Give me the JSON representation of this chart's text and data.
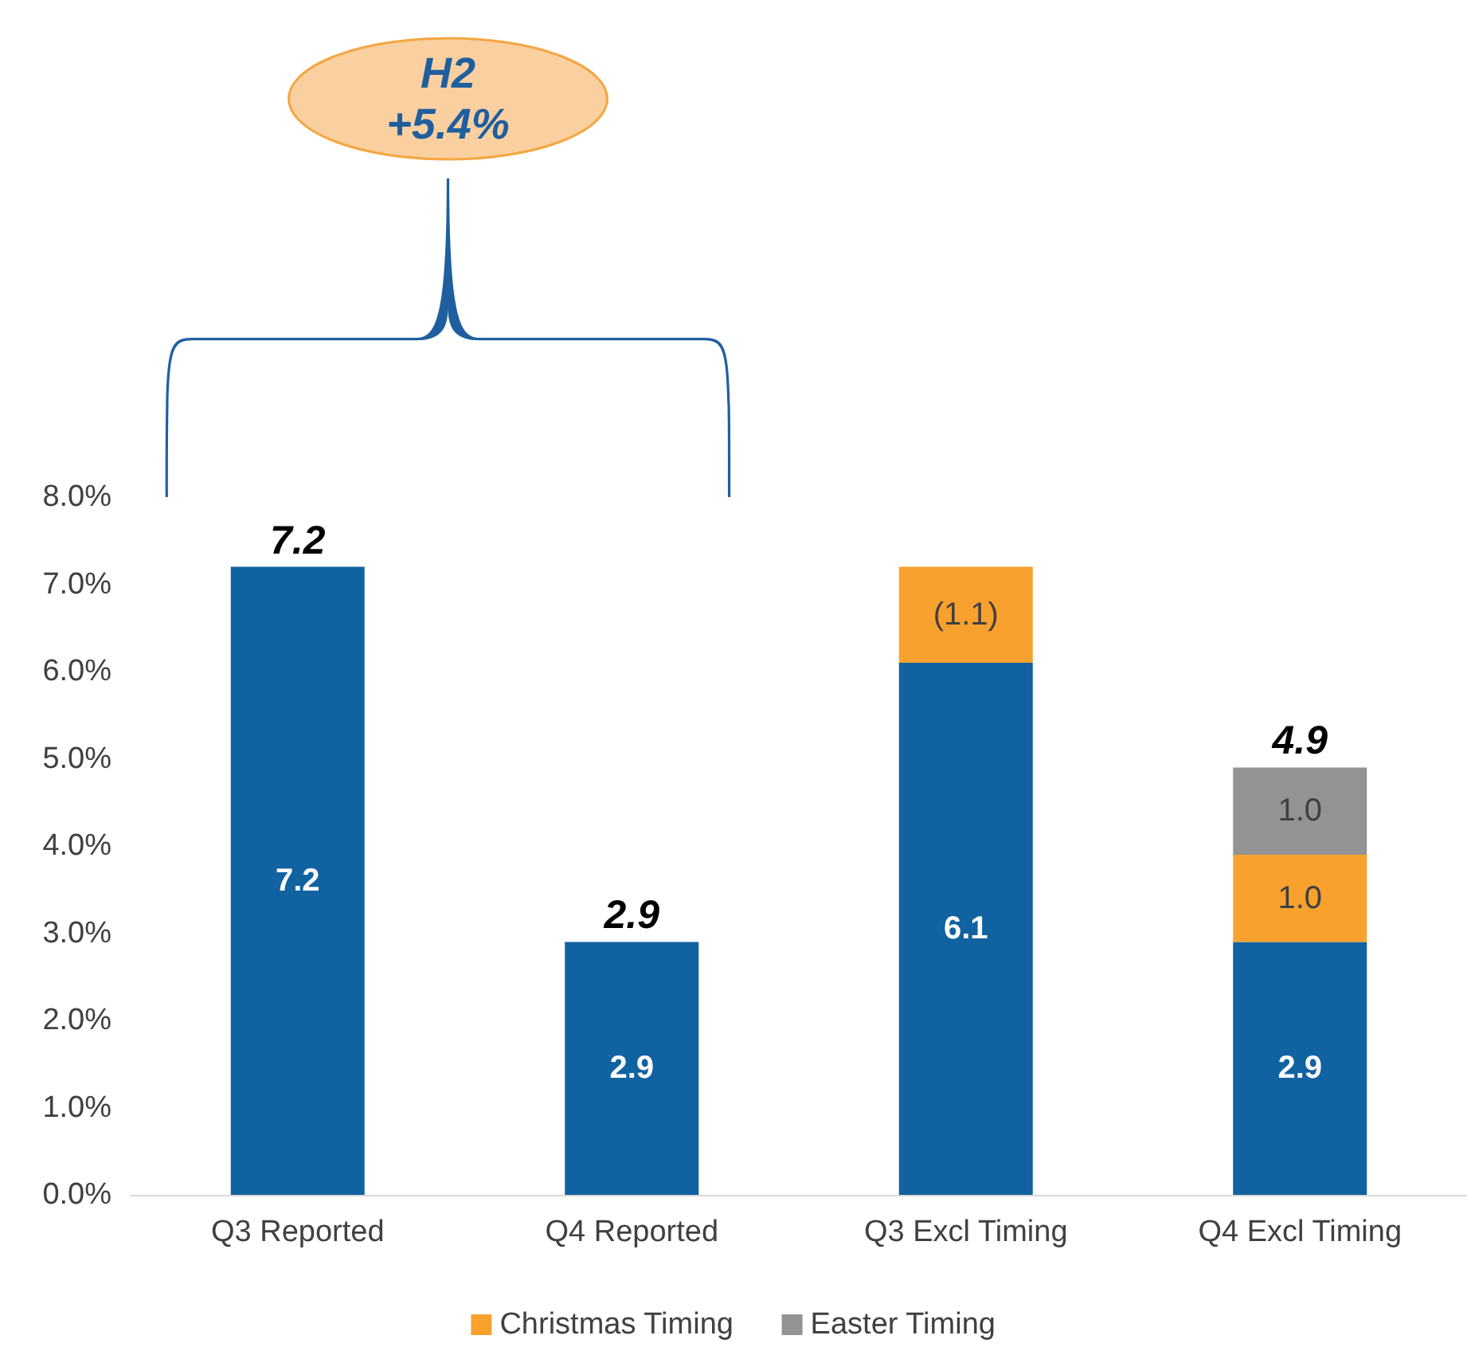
{
  "chart_data": {
    "type": "bar",
    "stacked": true,
    "categories": [
      "Q3 Reported",
      "Q4 Reported",
      "Q3 Excl Timing",
      "Q4 Excl Timing"
    ],
    "series": [
      {
        "color": "#1162a0",
        "values": [
          7.2,
          2.9,
          6.1,
          2.9
        ],
        "value_labels": [
          "7.2",
          "2.9",
          "6.1",
          "2.9"
        ]
      },
      {
        "name": "Christmas Timing",
        "color": "#f9a12e",
        "values": [
          null,
          null,
          1.1,
          1.0
        ],
        "value_labels": [
          null,
          null,
          "(1.1)",
          "1.0"
        ]
      },
      {
        "name": "Easter Timing",
        "color": "#939393",
        "values": [
          null,
          null,
          null,
          1.0
        ],
        "value_labels": [
          null,
          null,
          null,
          "1.0"
        ]
      }
    ],
    "totals": [
      "7.2",
      "2.9",
      null,
      "4.9"
    ],
    "ylim": [
      0,
      8
    ],
    "yticks": [
      {
        "value": 0,
        "label": "0.0%"
      },
      {
        "value": 1,
        "label": "1.0%"
      },
      {
        "value": 2,
        "label": "2.0%"
      },
      {
        "value": 3,
        "label": "3.0%"
      },
      {
        "value": 4,
        "label": "4.0%"
      },
      {
        "value": 5,
        "label": "5.0%"
      },
      {
        "value": 6,
        "label": "6.0%"
      },
      {
        "value": 7,
        "label": "7.0%"
      },
      {
        "value": 8,
        "label": "8.0%"
      }
    ],
    "annotations": [
      "H2\n+5.4%"
    ],
    "grid": false,
    "legend": "bottom"
  }
}
